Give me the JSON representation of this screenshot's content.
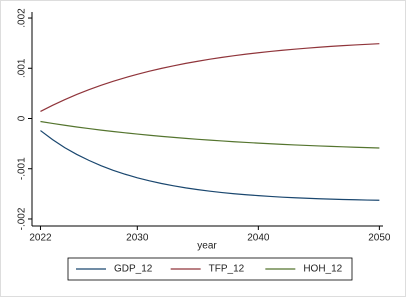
{
  "chart_data": {
    "type": "line",
    "x": [
      2022,
      2023,
      2024,
      2025,
      2026,
      2027,
      2028,
      2029,
      2030,
      2031,
      2032,
      2033,
      2034,
      2035,
      2036,
      2037,
      2038,
      2039,
      2040,
      2041,
      2042,
      2043,
      2044,
      2045,
      2046,
      2047,
      2048,
      2049,
      2050
    ],
    "series": [
      {
        "name": "GDP_12",
        "color": "#1a476f",
        "values": [
          -0.00024,
          -0.00042,
          -0.00058,
          -0.000715,
          -0.000834,
          -0.000939,
          -0.001031,
          -0.00111,
          -0.00118,
          -0.001241,
          -0.001294,
          -0.00134,
          -0.001381,
          -0.001416,
          -0.001447,
          -0.001474,
          -0.001498,
          -0.001518,
          -0.001536,
          -0.001552,
          -0.001566,
          -0.001578,
          -0.001588,
          -0.001597,
          -0.001605,
          -0.001612,
          -0.001618,
          -0.001624,
          -0.001628
        ]
      },
      {
        "name": "TFP_12",
        "color": "#90353b",
        "values": [
          0.00014,
          0.000263,
          0.000375,
          0.000479,
          0.000573,
          0.00066,
          0.00074,
          0.000813,
          0.00088,
          0.000941,
          0.000998,
          0.001049,
          0.001097,
          0.00114,
          0.00118,
          0.001217,
          0.00125,
          0.001281,
          0.001309,
          0.001335,
          0.001358,
          0.00138,
          0.0014,
          0.001418,
          0.001435,
          0.00145,
          0.001464,
          0.001477,
          0.001489
        ]
      },
      {
        "name": "HOH_12",
        "color": "#55752f",
        "values": [
          -6e-05,
          -9.8e-05,
          -0.000135,
          -0.000169,
          -0.000201,
          -0.000231,
          -0.000259,
          -0.000285,
          -0.00031,
          -0.000334,
          -0.000356,
          -0.000376,
          -0.000396,
          -0.000414,
          -0.000431,
          -0.000447,
          -0.000463,
          -0.000477,
          -0.00049,
          -0.000503,
          -0.000515,
          -0.000526,
          -0.000536,
          -0.000546,
          -0.000555,
          -0.000564,
          -0.000572,
          -0.00058,
          -0.000587
        ]
      }
    ],
    "x_label": "year",
    "xlim": [
      2021.3,
      2050.3
    ],
    "xticks": [
      2022,
      2030,
      2040,
      2050
    ],
    "ylim": [
      -0.00214,
      0.00212
    ],
    "yticks": [
      {
        "value": -0.002,
        "label": "-.002"
      },
      {
        "value": -0.001,
        "label": "-.001"
      },
      0,
      {
        "value": 0.001,
        "label": ".001"
      },
      {
        "value": 0.002,
        "label": ".002"
      }
    ],
    "legend": "bottom"
  }
}
